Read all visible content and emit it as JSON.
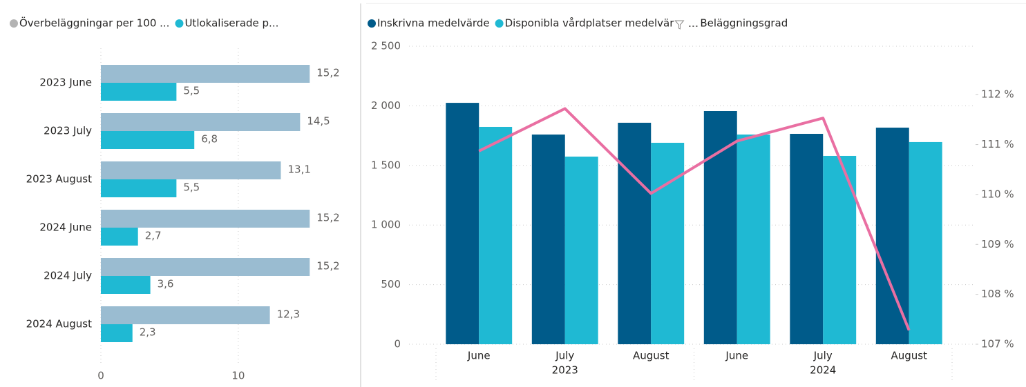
{
  "chart_data": [
    {
      "type": "bar",
      "orientation": "horizontal",
      "categories": [
        "2023 June",
        "2023 July",
        "2023 August",
        "2024 June",
        "2024 July",
        "2024 August"
      ],
      "series": [
        {
          "name": "Överbeläggningar per 100 ...",
          "color": "#9abcd1",
          "legend_color": "#b3b3b3",
          "values": [
            15.2,
            14.5,
            13.1,
            15.2,
            15.2,
            12.3
          ],
          "value_labels": [
            "15,2",
            "14,5",
            "13,1",
            "15,2",
            "15,2",
            "12,3"
          ]
        },
        {
          "name": "Utlokaliserade p...",
          "color": "#1fb9d3",
          "values": [
            5.5,
            6.8,
            5.5,
            2.7,
            3.6,
            2.3
          ],
          "value_labels": [
            "5,5",
            "6,8",
            "5,5",
            "2,7",
            "3,6",
            "2,3"
          ]
        }
      ],
      "xlim": [
        0,
        17.5
      ],
      "xticks": [
        0,
        10
      ],
      "grid": true
    },
    {
      "type": "bar",
      "categories": [
        "June",
        "July",
        "August",
        "June",
        "July",
        "August"
      ],
      "category_groups": [
        "2023",
        "2024"
      ],
      "series": [
        {
          "name": "Inskrivna medelvärde",
          "color": "#005b8a",
          "values": [
            2025,
            1759,
            1858,
            1956,
            1765,
            1817
          ]
        },
        {
          "name": "Disponibla vårdplatser medelvär",
          "color": "#1fb9d3",
          "values": [
            1823,
            1574,
            1690,
            1759,
            1580,
            1696
          ]
        },
        {
          "name": "Beläggningsgrad",
          "type": "line",
          "axis": "y2",
          "color": "#e96fa2",
          "values": [
            110.87,
            111.72,
            110.02,
            111.07,
            111.53,
            107.28
          ]
        }
      ],
      "ylim": [
        0,
        2500
      ],
      "yticks": [
        0,
        500,
        {
          "value": 1000,
          "label": "1 000"
        },
        {
          "value": 1500,
          "label": "1 500"
        },
        {
          "value": 2000,
          "label": "2 000"
        },
        {
          "value": 2500,
          "label": "2 500"
        }
      ],
      "y2lim": [
        107,
        112.97
      ],
      "y2ticks": [
        {
          "value": 107,
          "label": "107 %"
        },
        {
          "value": 108,
          "label": "108 %"
        },
        {
          "value": 109,
          "label": "109 %"
        },
        {
          "value": 110,
          "label": "110 %"
        },
        {
          "value": 111,
          "label": "111 %"
        },
        {
          "value": 112,
          "label": "112 %"
        }
      ],
      "grid": true
    }
  ]
}
